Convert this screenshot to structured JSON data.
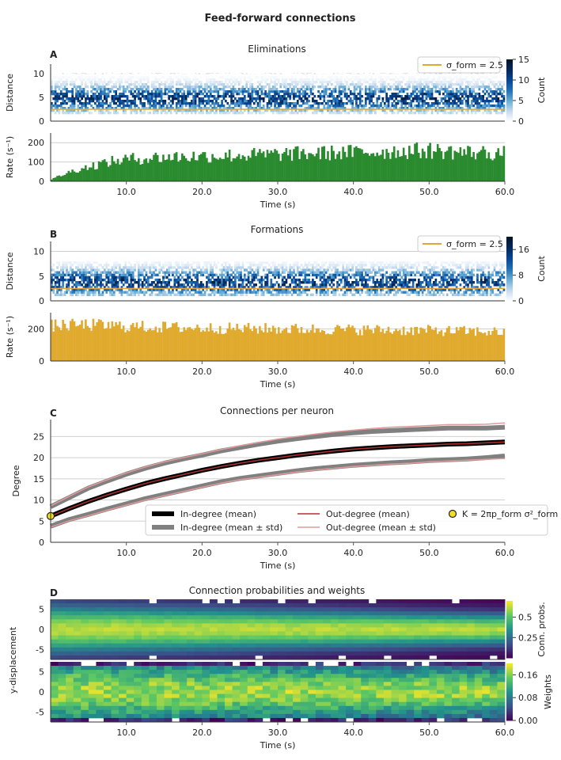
{
  "figure_title": "Feed-forward connections",
  "colors": {
    "grid": "#cfcfcf",
    "elim_rate": "#2a8a2e",
    "form_rate": "#e0aa2e",
    "sigma_line": "#e3a53a",
    "in_mean": "#000000",
    "in_std": "#808080",
    "out_mean": "#b03030",
    "out_std": "#e09a9a",
    "K_marker": "#f0e020"
  },
  "chart_data": [
    {
      "id": "A_top",
      "panel_letter": "A",
      "type": "heatmap",
      "title": "Eliminations",
      "ylabel": "Distance",
      "ylim": [
        0,
        12
      ],
      "yticks": [
        0,
        5,
        10
      ],
      "xlim": [
        0,
        60
      ],
      "xticks": [
        10,
        20,
        30,
        40,
        50,
        60
      ],
      "x_bins": 240,
      "distance_band": [
        1.5,
        9.0
      ],
      "peak_distance": 4.5,
      "sigma_form": 2.5,
      "legend": "σ_form = 2.5",
      "legend_loc": "upper right",
      "colorbar": {
        "label": "Count",
        "ticks": [
          0,
          5,
          10,
          15
        ],
        "range": [
          0,
          15
        ],
        "colormap": "blues"
      }
    },
    {
      "id": "A_bottom",
      "type": "bar",
      "ylabel": "Rate (s⁻¹)",
      "ylim": [
        0,
        250
      ],
      "yticks": [
        0,
        100,
        200
      ],
      "xlim": [
        0,
        60
      ],
      "xticks": [
        10,
        20,
        30,
        40,
        50,
        60
      ],
      "xticklabels": [
        "10.0",
        "20.0",
        "30.0",
        "40.0",
        "50.0",
        "60.0"
      ],
      "xlabel": "Time (s)",
      "bins": 240,
      "rate_profile": {
        "x": [
          0,
          1,
          3,
          5,
          7,
          10,
          15,
          20,
          25,
          30,
          35,
          40,
          45,
          50,
          55,
          60
        ],
        "y": [
          8,
          25,
          55,
          75,
          95,
          115,
          125,
          130,
          135,
          140,
          145,
          150,
          155,
          160,
          150,
          145
        ]
      }
    },
    {
      "id": "B_top",
      "panel_letter": "B",
      "type": "heatmap",
      "title": "Formations",
      "ylabel": "Distance",
      "ylim": [
        0,
        12
      ],
      "yticks": [
        0,
        5,
        10
      ],
      "xlim": [
        0,
        60
      ],
      "xticks": [
        10,
        20,
        30,
        40,
        50,
        60
      ],
      "x_bins": 240,
      "distance_band": [
        1.0,
        7.5
      ],
      "peak_distance": 3.5,
      "sigma_form": 2.5,
      "legend": "σ_form = 2.5",
      "legend_loc": "upper right",
      "colorbar": {
        "label": "Count",
        "ticks": [
          0,
          8,
          16
        ],
        "range": [
          0,
          20
        ],
        "colormap": "blues"
      }
    },
    {
      "id": "B_bottom",
      "type": "bar",
      "ylabel": "Rate (s⁻¹)",
      "ylim": [
        0,
        300
      ],
      "yticks": [
        0,
        200
      ],
      "xlim": [
        0,
        60
      ],
      "xticks": [
        10,
        20,
        30,
        40,
        50,
        60
      ],
      "xticklabels": [
        "10.0",
        "20.0",
        "30.0",
        "40.0",
        "50.0",
        "60.0"
      ],
      "xlabel": "Time (s)",
      "bins": 240,
      "rate_profile": {
        "x": [
          0,
          5,
          10,
          20,
          30,
          40,
          50,
          60
        ],
        "y": [
          220,
          225,
          215,
          205,
          200,
          195,
          190,
          180
        ]
      }
    },
    {
      "id": "C",
      "panel_letter": "C",
      "type": "line",
      "title": "Connections per neuron",
      "ylabel": "Degree",
      "xlabel": "Time (s)",
      "ylim": [
        0,
        29
      ],
      "yticks": [
        0,
        5,
        10,
        15,
        20,
        25
      ],
      "xlim": [
        0,
        60
      ],
      "xticks": [
        10,
        20,
        30,
        40,
        50,
        60
      ],
      "xticklabels": [
        "10.0",
        "20.0",
        "30.0",
        "40.0",
        "50.0",
        "60.0"
      ],
      "x": [
        0,
        2.5,
        5,
        7.5,
        10,
        12.5,
        15,
        17.5,
        20,
        22.5,
        25,
        27.5,
        30,
        32.5,
        35,
        37.5,
        40,
        42.5,
        45,
        47.5,
        50,
        52.5,
        55,
        57.5,
        60
      ],
      "series": [
        {
          "name": "In-degree (mean)",
          "role": "in_mean",
          "values": [
            6.2,
            8.0,
            9.7,
            11.2,
            12.6,
            13.9,
            15.0,
            16.0,
            17.0,
            17.9,
            18.7,
            19.4,
            20.0,
            20.6,
            21.1,
            21.6,
            22.0,
            22.3,
            22.6,
            22.8,
            23.0,
            23.2,
            23.3,
            23.5,
            23.7
          ]
        },
        {
          "name": "In-degree (mean + std)",
          "role": "in_std_upper",
          "values": [
            8.4,
            10.6,
            12.8,
            14.5,
            16.1,
            17.5,
            18.7,
            19.7,
            20.6,
            21.6,
            22.4,
            23.2,
            23.9,
            24.5,
            25.0,
            25.5,
            25.9,
            26.2,
            26.4,
            26.6,
            26.8,
            27.0,
            27.0,
            27.0,
            27.2
          ]
        },
        {
          "name": "In-degree (mean - std)",
          "role": "in_std_lower",
          "values": [
            3.8,
            5.4,
            6.6,
            7.9,
            9.1,
            10.3,
            11.3,
            12.3,
            13.3,
            14.3,
            15.1,
            15.7,
            16.3,
            16.9,
            17.4,
            17.8,
            18.2,
            18.5,
            18.8,
            19.0,
            19.3,
            19.5,
            19.7,
            20.0,
            20.4
          ]
        },
        {
          "name": "Out-degree (mean)",
          "role": "out_mean",
          "values": [
            6.2,
            8.0,
            9.7,
            11.2,
            12.6,
            13.9,
            15.0,
            16.0,
            17.0,
            17.9,
            18.7,
            19.4,
            20.0,
            20.6,
            21.1,
            21.6,
            22.0,
            22.3,
            22.6,
            22.8,
            23.0,
            23.2,
            23.3,
            23.5,
            23.7
          ]
        },
        {
          "name": "Out-degree (mean + std)",
          "role": "out_std_upper",
          "values": [
            8.6,
            10.9,
            13.1,
            14.8,
            16.4,
            17.8,
            19.0,
            20.0,
            20.9,
            21.9,
            22.8,
            23.6,
            24.4,
            25.0,
            25.6,
            26.1,
            26.5,
            26.9,
            27.2,
            27.4,
            27.6,
            27.8,
            27.8,
            27.9,
            28.2
          ]
        },
        {
          "name": "Out-degree (mean - std)",
          "role": "out_std_lower",
          "values": [
            3.6,
            5.1,
            6.3,
            7.6,
            8.8,
            10.0,
            11.0,
            12.0,
            13.0,
            14.0,
            14.8,
            15.4,
            16.0,
            16.6,
            17.1,
            17.5,
            17.9,
            18.2,
            18.5,
            18.7,
            19.0,
            19.2,
            19.4,
            19.6,
            19.8
          ]
        }
      ],
      "K_point": {
        "x": 0,
        "y": 6.2
      },
      "legend": {
        "in_mean": "In-degree (mean)",
        "in_std": "In-degree (mean ± std)",
        "out_mean": "Out-degree (mean)",
        "out_std": "Out-degree (mean ± std)",
        "K": "K = 2πp_form σ²_form"
      },
      "legend_loc": "lower right"
    },
    {
      "id": "D_top",
      "panel_letter": "D",
      "type": "heatmap",
      "title": "Connection probabilities and weights",
      "ylabel": "y-displacement",
      "ylim": [
        -7.5,
        7.5
      ],
      "yticks": [
        -5,
        0,
        5
      ],
      "xlim": [
        0,
        60
      ],
      "x_cols": 60,
      "y_rows": 15,
      "colorbar": {
        "label": "Conn. probs.",
        "ticks": [
          0.25,
          0.5
        ],
        "range": [
          0,
          0.7
        ],
        "colormap": "viridis"
      }
    },
    {
      "id": "D_bottom",
      "type": "heatmap",
      "ylim": [
        -7.5,
        7.5
      ],
      "yticks": [
        -5,
        0,
        5
      ],
      "xlim": [
        0,
        60
      ],
      "xticks": [
        10,
        20,
        30,
        40,
        50,
        60
      ],
      "xticklabels": [
        "10.0",
        "20.0",
        "30.0",
        "40.0",
        "50.0",
        "60.0"
      ],
      "xlabel": "Time (s)",
      "x_cols": 60,
      "y_rows": 15,
      "colorbar": {
        "label": "Weights",
        "ticks": [
          0.0,
          0.08,
          0.16
        ],
        "tick_labels": [
          "0.00",
          "0.08",
          "0.16"
        ],
        "range": [
          0,
          0.2
        ],
        "colormap": "viridis"
      }
    }
  ]
}
